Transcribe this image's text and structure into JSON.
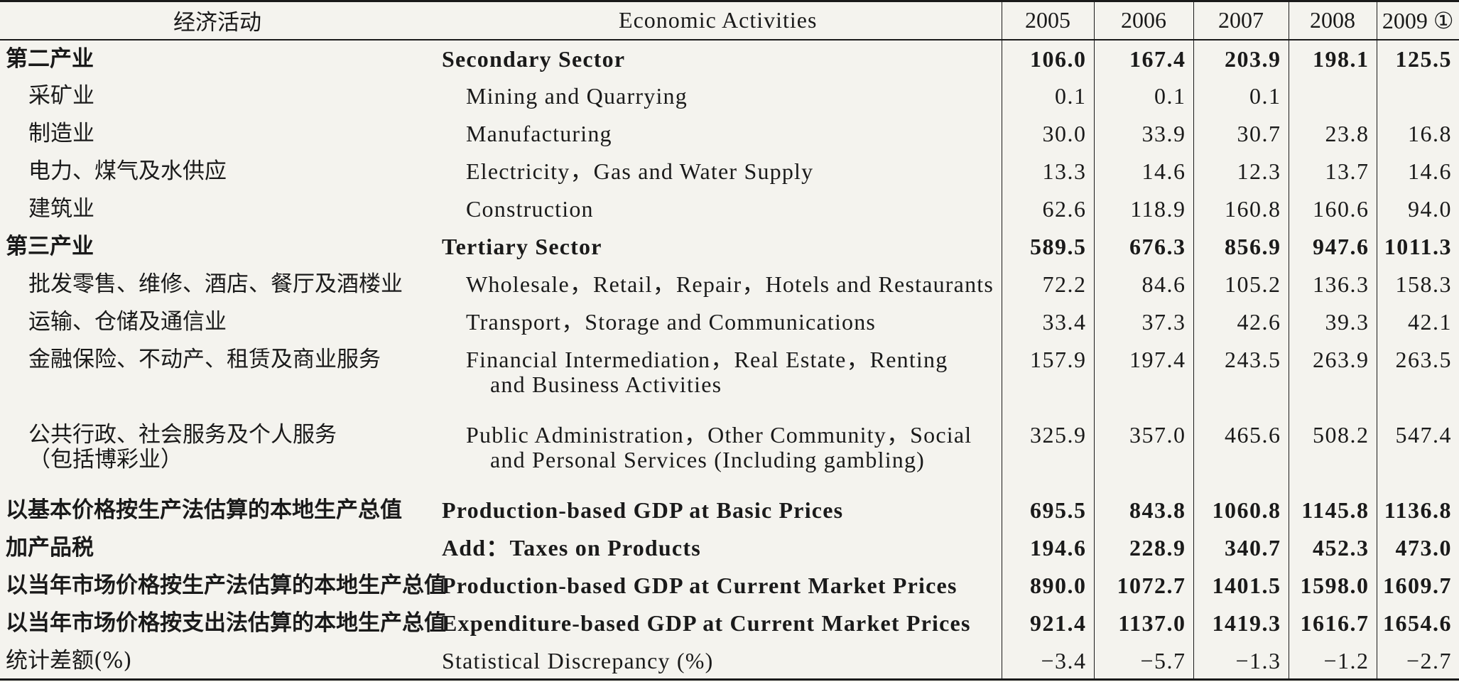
{
  "header": {
    "zh": "经济活动",
    "en": "Economic Activities",
    "years": [
      "2005",
      "2006",
      "2007",
      "2008",
      "2009 ①"
    ]
  },
  "rows": [
    {
      "zh": "第二产业",
      "en": "Secondary Sector",
      "values": [
        "106.0",
        "167.4",
        "203.9",
        "198.1",
        "125.5"
      ]
    },
    {
      "zh": "采矿业",
      "en": "Mining and Quarrying",
      "values": [
        "0.1",
        "0.1",
        "0.1",
        "",
        ""
      ]
    },
    {
      "zh": "制造业",
      "en": "Manufacturing",
      "values": [
        "30.0",
        "33.9",
        "30.7",
        "23.8",
        "16.8"
      ]
    },
    {
      "zh": "电力、煤气及水供应",
      "en": "Electricity，Gas and Water Supply",
      "values": [
        "13.3",
        "14.6",
        "12.3",
        "13.7",
        "14.6"
      ]
    },
    {
      "zh": "建筑业",
      "en": "Construction",
      "values": [
        "62.6",
        "118.9",
        "160.8",
        "160.6",
        "94.0"
      ]
    },
    {
      "zh": "第三产业",
      "en": "Tertiary Sector",
      "values": [
        "589.5",
        "676.3",
        "856.9",
        "947.6",
        "1011.3"
      ]
    },
    {
      "zh": "批发零售、维修、酒店、餐厅及酒楼业",
      "en": "Wholesale，Retail，Repair，Hotels and Restaurants",
      "values": [
        "72.2",
        "84.6",
        "105.2",
        "136.3",
        "158.3"
      ]
    },
    {
      "zh": "运输、仓储及通信业",
      "en": "Transport，Storage and Communications",
      "values": [
        "33.4",
        "37.3",
        "42.6",
        "39.3",
        "42.1"
      ]
    },
    {
      "zh": "金融保险、不动产、租赁及商业服务",
      "en": "Financial Intermediation，Real Estate，Renting",
      "en2": "and Business Activities",
      "values": [
        "157.9",
        "197.4",
        "243.5",
        "263.9",
        "263.5"
      ]
    },
    {
      "zh": "公共行政、社会服务及个人服务",
      "zh2": "（包括博彩业）",
      "en": "Public Administration，Other Community，Social",
      "en2": "and Personal Services (Including gambling)",
      "values": [
        "325.9",
        "357.0",
        "465.6",
        "508.2",
        "547.4"
      ]
    },
    {
      "zh": "以基本价格按生产法估算的本地生产总值",
      "en": "Production-based GDP at Basic Prices",
      "values": [
        "695.5",
        "843.8",
        "1060.8",
        "1145.8",
        "1136.8"
      ]
    },
    {
      "zh": "加产品税",
      "en": "Add：Taxes on Products",
      "values": [
        "194.6",
        "228.9",
        "340.7",
        "452.3",
        "473.0"
      ]
    },
    {
      "zh": "以当年市场价格按生产法估算的本地生产总值",
      "en": "Production-based GDP at Current Market Prices",
      "values": [
        "890.0",
        "1072.7",
        "1401.5",
        "1598.0",
        "1609.7"
      ]
    },
    {
      "zh": "以当年市场价格按支出法估算的本地生产总值",
      "en": "Expenditure-based GDP at Current Market Prices",
      "values": [
        "921.4",
        "1137.0",
        "1419.3",
        "1616.7",
        "1654.6"
      ]
    },
    {
      "zh": "统计差额(%)",
      "en": "Statistical Discrepancy (%)",
      "values": [
        "−3.4",
        "−5.7",
        "−1.3",
        "−1.2",
        "−2.7"
      ]
    }
  ]
}
